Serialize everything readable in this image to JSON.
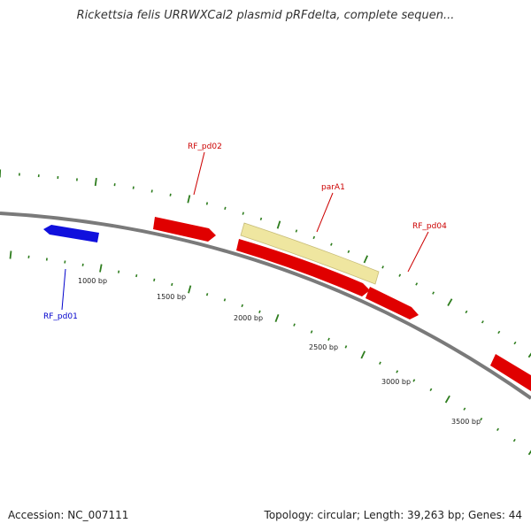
{
  "title": "Rickettsia felis URRWXCal2 plasmid pRFdelta, complete sequen...",
  "accession": "Accession: NC_007111",
  "summary": "Topology: circular; Length: 39,263 bp; Genes: 44",
  "colors": {
    "backbone": "#7a7a7a",
    "tick": "#2e7d1e",
    "forward_gene": "#e00000",
    "reverse_gene": "#1010dd",
    "parA_feature": "#efe6a0",
    "label_forward": "#cc0000",
    "label_reverse": "#0000cc"
  },
  "scale_labels": [
    "1000 bp",
    "1500 bp",
    "2000 bp",
    "2500 bp",
    "3000 bp",
    "3500 bp"
  ],
  "features": [
    {
      "name": "RF_pd01",
      "strand": "reverse",
      "color": "#1010dd"
    },
    {
      "name": "RF_pd02",
      "strand": "forward",
      "color": "#e00000"
    },
    {
      "name": "parA1",
      "strand": "forward",
      "color": "#efe6a0"
    },
    {
      "name": "RF_pd04",
      "strand": "forward",
      "color": "#e00000"
    }
  ]
}
